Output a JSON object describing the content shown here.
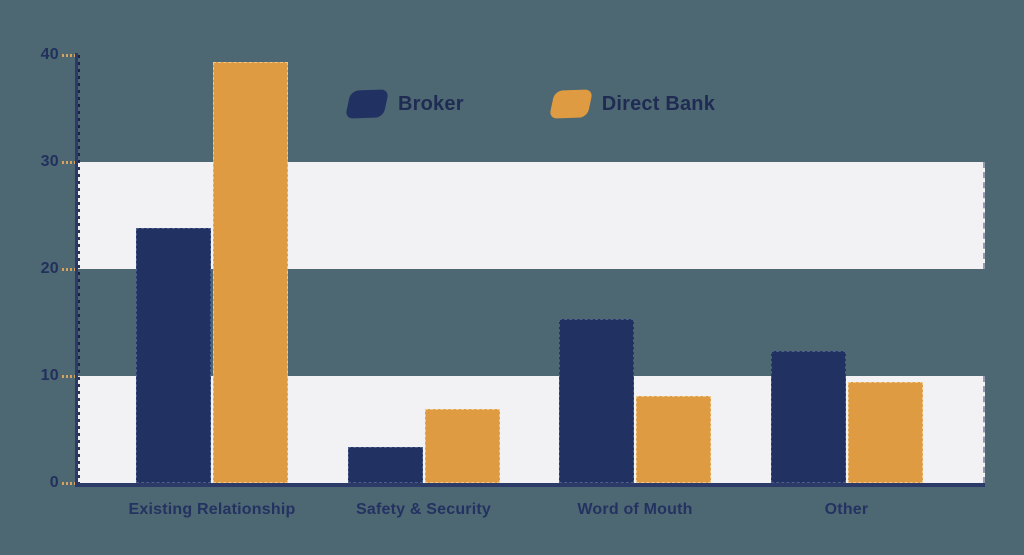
{
  "page": {
    "background_color": "#4d6872",
    "band_color": "#f2f1f3",
    "axis_color": "#2b3a66",
    "tick_dash_color": "#d7a15e",
    "text_color": "#243262"
  },
  "legend": {
    "items": [
      {
        "label": "Broker",
        "color": "#213162"
      },
      {
        "label": "Direct Bank",
        "color": "#df9b41"
      }
    ]
  },
  "chart_data": {
    "type": "bar",
    "title": "",
    "xlabel": "",
    "ylabel": "",
    "categories": [
      "Existing Relationship",
      "Safety & Security",
      "Word of Mouth",
      "Other"
    ],
    "series": [
      {
        "name": "Broker",
        "color": "#213162",
        "values": [
          23.8,
          3.4,
          15.3,
          12.3
        ]
      },
      {
        "name": "Direct Bank",
        "color": "#df9b41",
        "values": [
          39.3,
          6.9,
          8.1,
          9.4
        ]
      }
    ],
    "ylim": [
      0,
      40
    ],
    "ytick_interval": 10,
    "ytick_labels": [
      "0",
      "10",
      "20",
      "30",
      "40"
    ],
    "grid": "banded",
    "band_ranges": [
      [
        0,
        10
      ],
      [
        20,
        30
      ]
    ],
    "legend_position": "top-center"
  }
}
